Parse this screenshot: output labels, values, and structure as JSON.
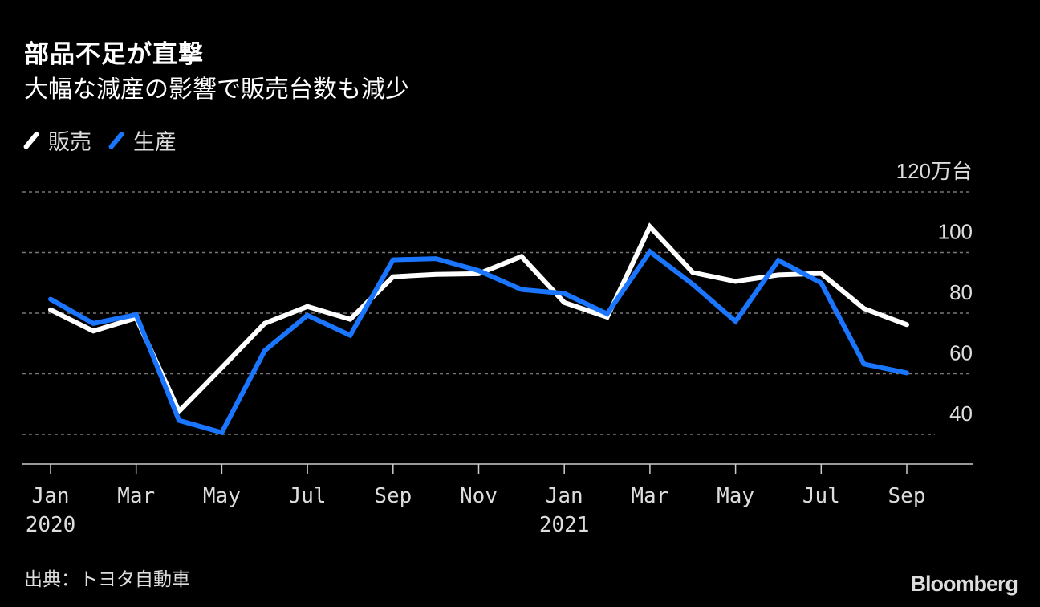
{
  "header": {
    "title": "部品不足が直撃",
    "subtitle": "大幅な減産の影響で販売台数も減少"
  },
  "legend": [
    {
      "label": "販売",
      "color": "#ffffff"
    },
    {
      "label": "生産",
      "color": "#1a75ff"
    }
  ],
  "footer": {
    "source": "出典：トヨタ自動車",
    "brand": "Bloomberg"
  },
  "chart_data": {
    "type": "line",
    "title": "部品不足が直撃",
    "subtitle": "大幅な減産の影響で販売台数も減少",
    "xlabel": "",
    "ylabel": "万台",
    "ylim": [
      30,
      120
    ],
    "y_ticks": [
      "120万台",
      "100",
      "80",
      "60",
      "40"
    ],
    "y_tick_values": [
      120,
      100,
      80,
      60,
      40
    ],
    "x_tick_labels": [
      "Jan\n2020",
      "Mar",
      "May",
      "Jul",
      "Sep",
      "Nov",
      "Jan\n2021",
      "Mar",
      "May",
      "Jul",
      "Sep"
    ],
    "grid": true,
    "legend_position": "top-left",
    "categories": [
      "2020-01",
      "2020-02",
      "2020-03",
      "2020-04",
      "2020-05",
      "2020-06",
      "2020-07",
      "2020-08",
      "2020-09",
      "2020-10",
      "2020-11",
      "2020-12",
      "2021-01",
      "2021-02",
      "2021-03",
      "2021-04",
      "2021-05",
      "2021-06",
      "2021-07",
      "2021-08",
      "2021-09"
    ],
    "series": [
      {
        "name": "販売",
        "color": "#ffffff",
        "values": [
          81.1,
          74.1,
          78.4,
          47.6,
          62.0,
          76.6,
          82.2,
          78.0,
          92.0,
          92.8,
          93.0,
          98.7,
          83.5,
          78.7,
          108.5,
          93.4,
          90.5,
          92.6,
          93.1,
          81.5,
          76.2
        ]
      },
      {
        "name": "生産",
        "color": "#1a75ff",
        "values": [
          84.6,
          76.6,
          79.5,
          44.6,
          40.6,
          67.6,
          79.3,
          72.7,
          97.6,
          98.0,
          94.0,
          87.8,
          86.5,
          79.8,
          100.3,
          89.5,
          77.3,
          97.4,
          90.0,
          63.2,
          60.3
        ]
      }
    ]
  }
}
